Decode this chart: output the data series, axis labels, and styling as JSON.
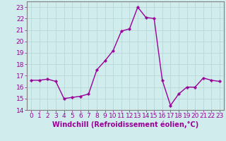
{
  "x": [
    0,
    1,
    2,
    3,
    4,
    5,
    6,
    7,
    8,
    9,
    10,
    11,
    12,
    13,
    14,
    15,
    16,
    17,
    18,
    19,
    20,
    21,
    22,
    23
  ],
  "y": [
    16.6,
    16.6,
    16.7,
    16.5,
    15.0,
    15.1,
    15.2,
    15.4,
    17.5,
    18.3,
    19.2,
    20.9,
    21.1,
    23.0,
    22.1,
    22.0,
    16.6,
    14.4,
    15.4,
    16.0,
    16.0,
    16.8,
    16.6,
    16.5
  ],
  "line_color": "#990099",
  "marker": "P",
  "marker_size": 2.5,
  "linewidth": 1.0,
  "bg_color": "#d0ecec",
  "grid_color": "#b8d8d8",
  "xlabel": "Windchill (Refroidissement éolien,°C)",
  "xlabel_color": "#990099",
  "xlabel_fontsize": 7.0,
  "tick_color": "#990099",
  "tick_fontsize": 6.5,
  "ylim": [
    14,
    23.5
  ],
  "xlim": [
    -0.5,
    23.5
  ],
  "yticks": [
    14,
    15,
    16,
    17,
    18,
    19,
    20,
    21,
    22,
    23
  ],
  "xticks": [
    0,
    1,
    2,
    3,
    4,
    5,
    6,
    7,
    8,
    9,
    10,
    11,
    12,
    13,
    14,
    15,
    16,
    17,
    18,
    19,
    20,
    21,
    22,
    23
  ],
  "spine_color": "#808080"
}
